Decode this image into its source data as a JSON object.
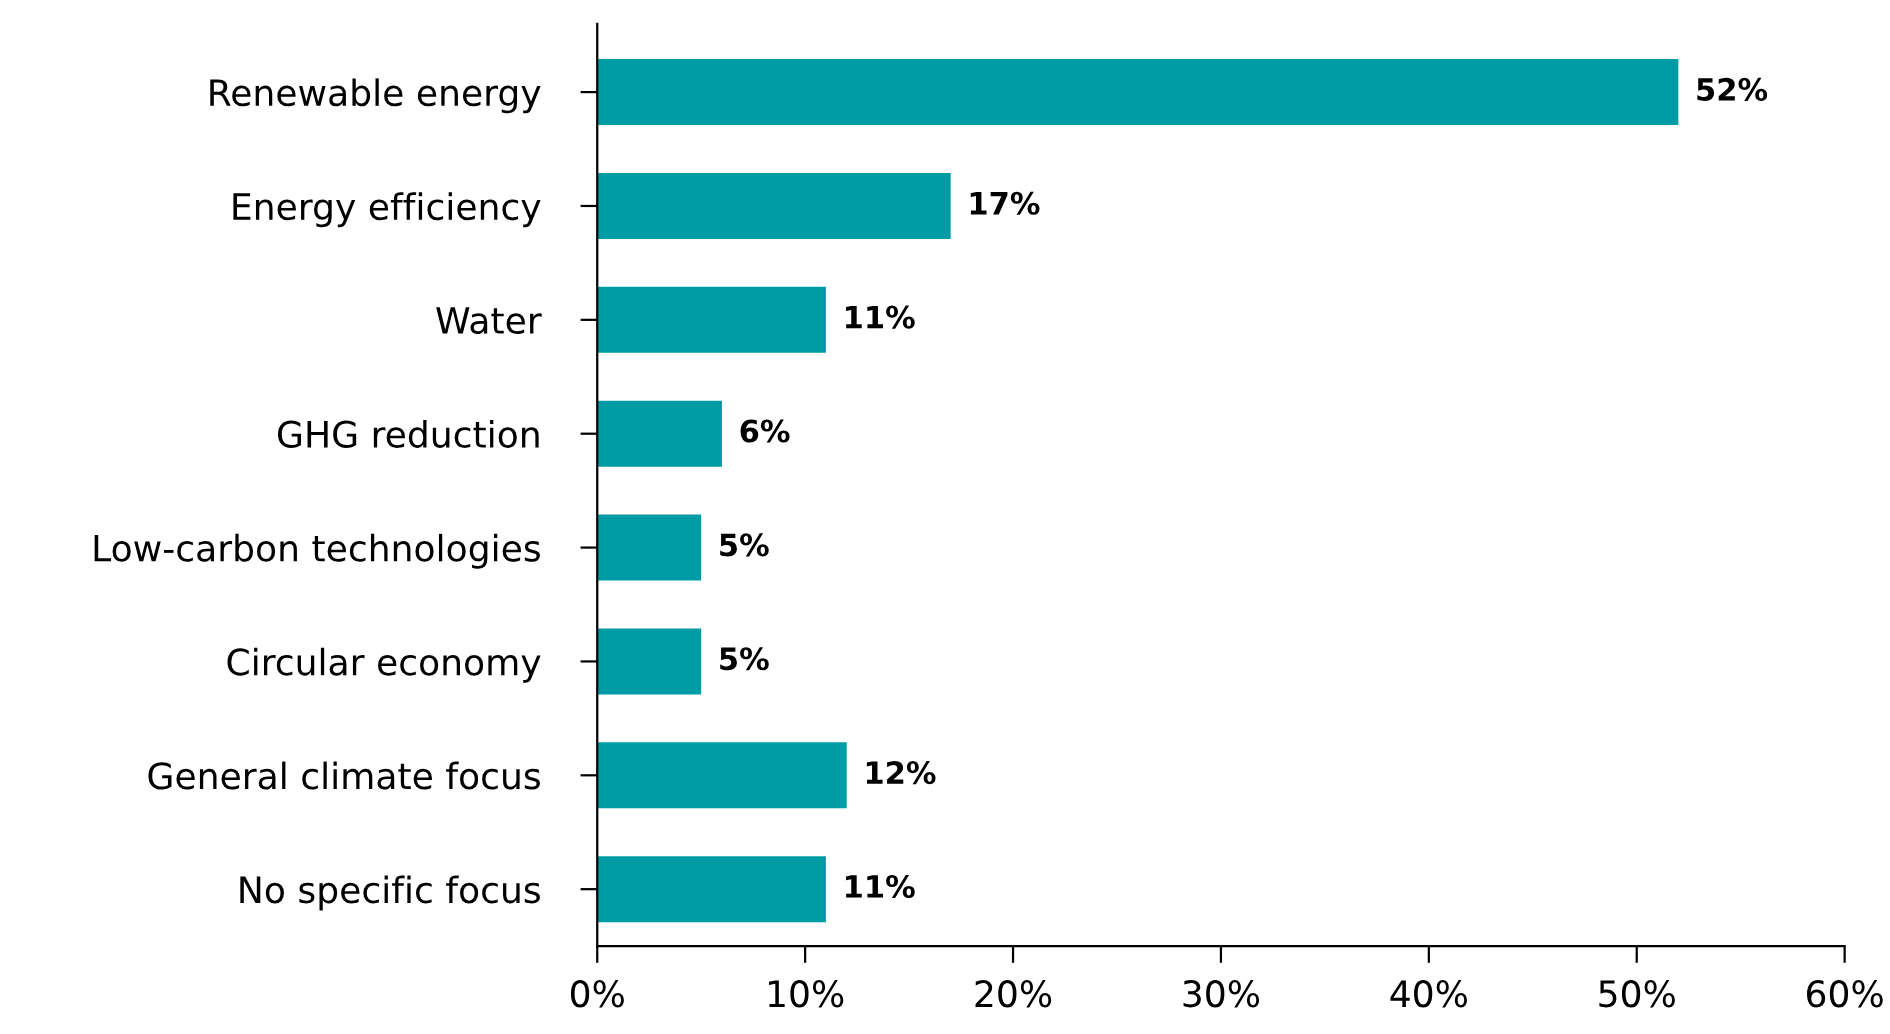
{
  "chart_data": {
    "type": "bar",
    "orientation": "horizontal",
    "categories": [
      "Renewable energy",
      "Energy efficiency",
      "Water",
      "GHG reduction",
      "Low-carbon technologies",
      "Circular economy",
      "General climate focus",
      "No specific focus"
    ],
    "values": [
      52,
      17,
      11,
      6,
      5,
      5,
      12,
      11
    ],
    "value_labels": [
      "52%",
      "17%",
      "11%",
      "6%",
      "5%",
      "5%",
      "12%",
      "11%"
    ],
    "color": "#009ca6",
    "xlim": [
      0,
      60
    ],
    "xticks": [
      {
        "value": 0,
        "label": "0%"
      },
      {
        "value": 10,
        "label": "10%"
      },
      {
        "value": 20,
        "label": "20%"
      },
      {
        "value": 30,
        "label": "30%"
      },
      {
        "value": 40,
        "label": "40%"
      },
      {
        "value": 50,
        "label": "50%"
      },
      {
        "value": 60,
        "label": "60%"
      }
    ],
    "grid": false,
    "legend": false
  }
}
